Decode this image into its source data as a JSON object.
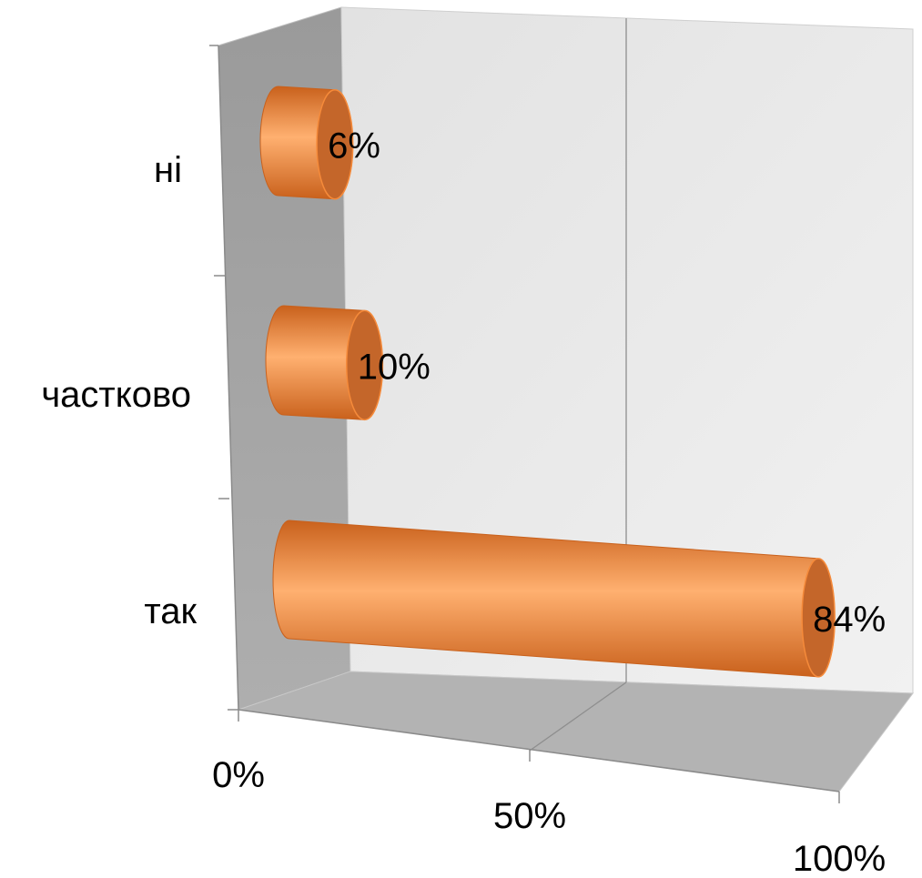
{
  "chart_data": {
    "type": "bar",
    "orientation": "horizontal",
    "style": "3d-cylinder",
    "categories": [
      "ні",
      "частково",
      "так"
    ],
    "values": [
      6,
      10,
      84
    ],
    "data_labels": [
      "6%",
      "10%",
      "84%"
    ],
    "x_ticks": [
      "0%",
      "50%",
      "100%"
    ],
    "xlim": [
      0,
      100
    ],
    "grid": true,
    "legend": "none",
    "colors": {
      "bar": "#F58A3A",
      "bar_highlight": "#FFB070",
      "bar_shadow": "#C9611C",
      "bar_end": "#C4662A",
      "side_wall": "#A4A4A4",
      "back_wall": "#E9E9E9",
      "floor": "#B3B3B3"
    }
  }
}
